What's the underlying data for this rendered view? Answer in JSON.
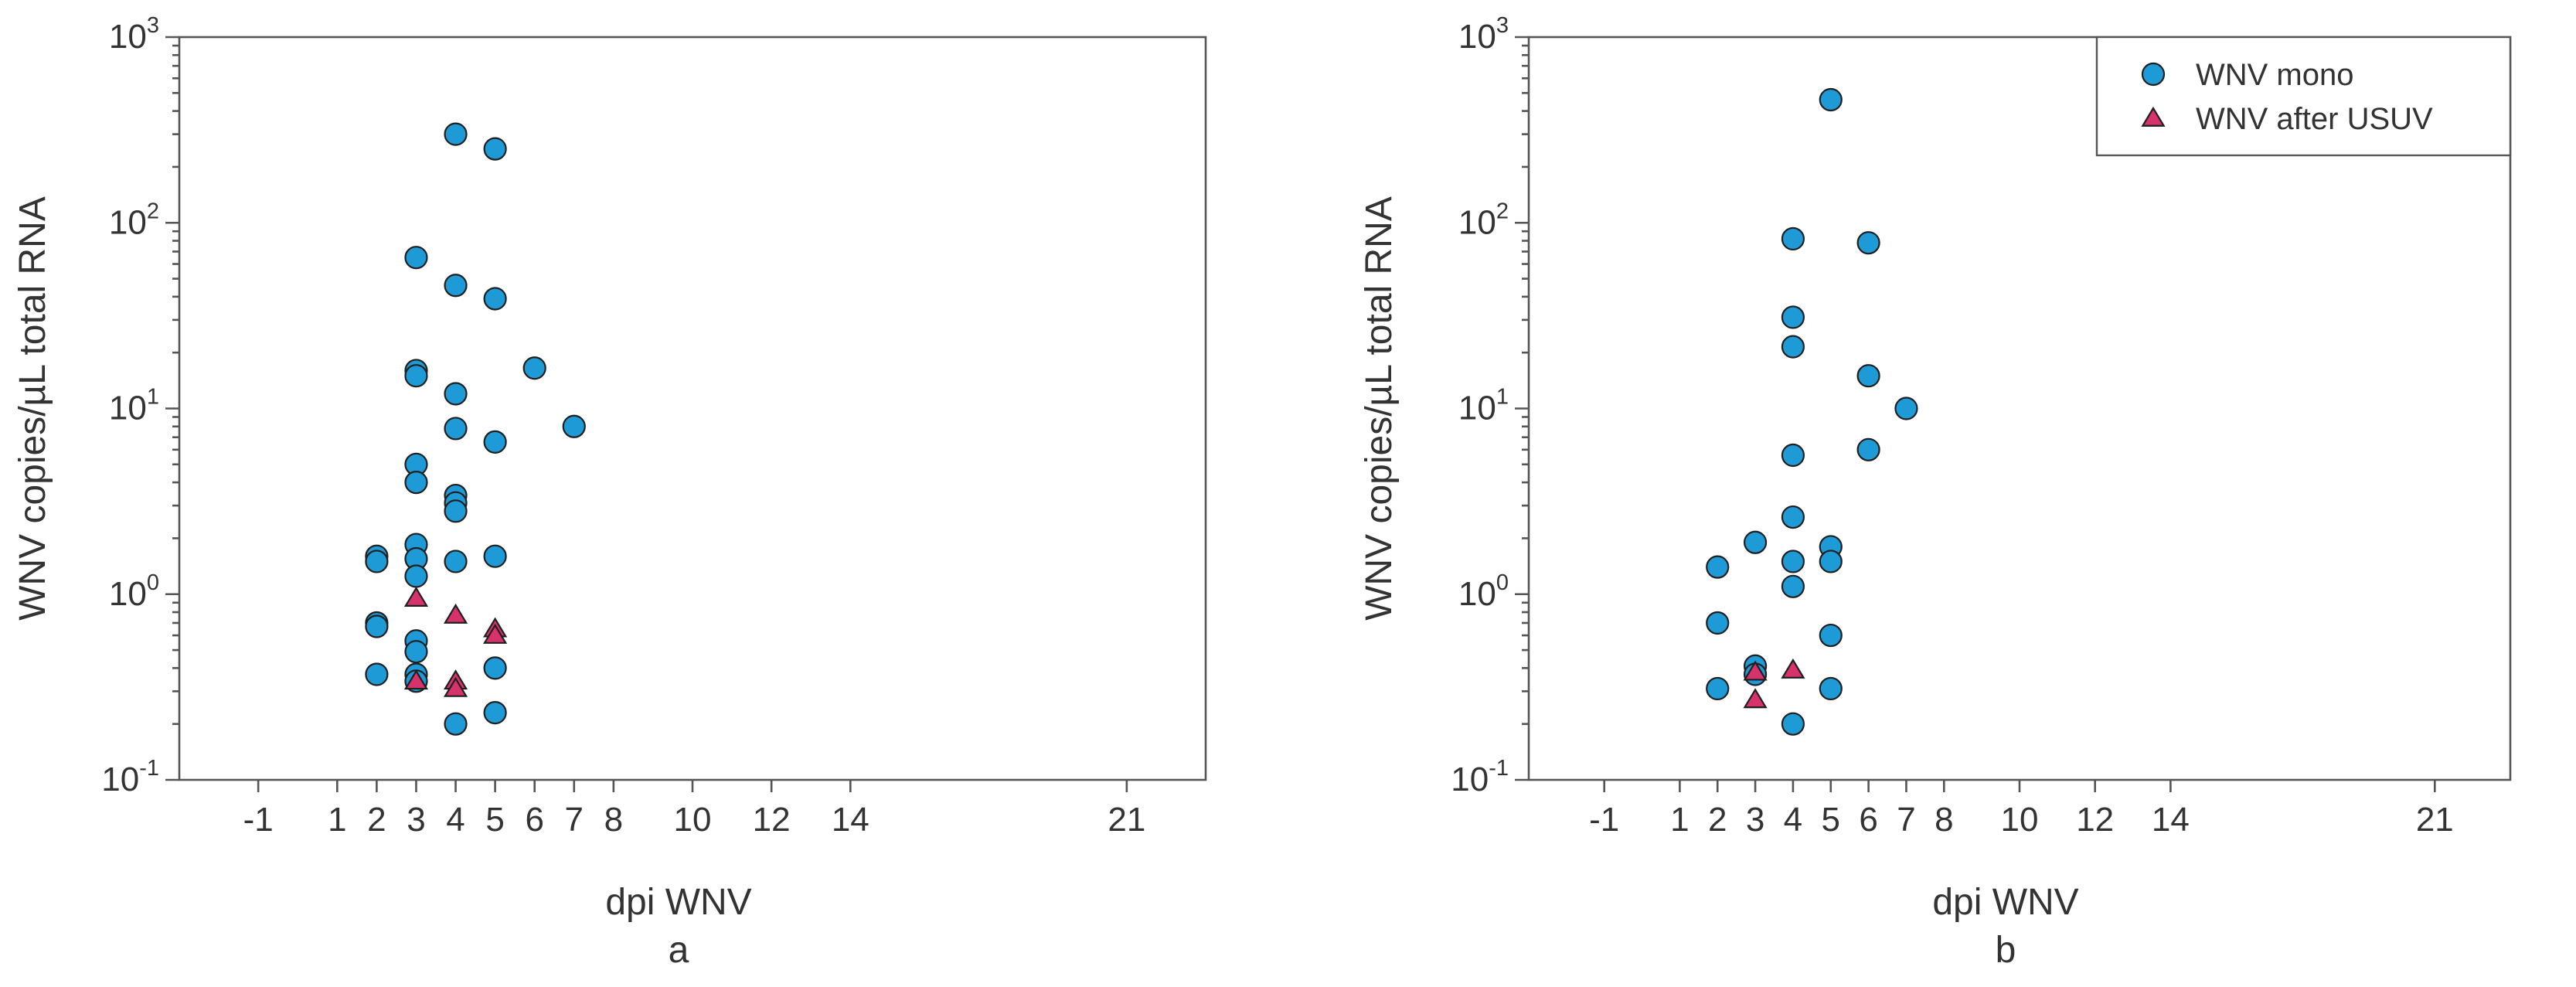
{
  "chart_data": [
    {
      "type": "scatter",
      "panel_label": "a",
      "xlabel": "dpi WNV",
      "ylabel": "WNV copies/µL total RNA",
      "xlim": [
        -3,
        23
      ],
      "ylim": [
        0.1,
        1000
      ],
      "y_scale": "log",
      "x_ticks": [
        -1,
        1,
        2,
        3,
        4,
        5,
        6,
        7,
        8,
        10,
        12,
        14,
        21
      ],
      "y_ticks": [
        {
          "value": 0.1,
          "base": "10",
          "exp": "-1"
        },
        {
          "value": 1,
          "base": "10",
          "exp": "0"
        },
        {
          "value": 10,
          "base": "10",
          "exp": "1"
        },
        {
          "value": 100,
          "base": "10",
          "exp": "2"
        },
        {
          "value": 1000,
          "base": "10",
          "exp": "3"
        }
      ],
      "legend": null,
      "series": [
        {
          "name": "WNV mono",
          "marker": "circle",
          "color": "#1e9bd7",
          "points": [
            [
              2,
              1.6
            ],
            [
              2,
              1.5
            ],
            [
              2,
              0.7
            ],
            [
              2,
              0.67
            ],
            [
              2,
              0.37
            ],
            [
              3,
              65
            ],
            [
              3,
              16
            ],
            [
              3,
              15
            ],
            [
              3,
              5
            ],
            [
              3,
              4
            ],
            [
              3,
              1.85
            ],
            [
              3,
              1.55
            ],
            [
              3,
              1.25
            ],
            [
              3,
              0.56
            ],
            [
              3,
              0.49
            ],
            [
              3,
              0.37
            ],
            [
              3,
              0.34
            ],
            [
              4,
              300
            ],
            [
              4,
              46
            ],
            [
              4,
              12
            ],
            [
              4,
              7.8
            ],
            [
              4,
              3.4
            ],
            [
              4,
              3.1
            ],
            [
              4,
              2.8
            ],
            [
              4,
              1.5
            ],
            [
              4,
              0.2
            ],
            [
              5,
              250
            ],
            [
              5,
              39
            ],
            [
              5,
              6.6
            ],
            [
              5,
              1.6
            ],
            [
              5,
              0.4
            ],
            [
              5,
              0.23
            ],
            [
              6,
              16.5
            ],
            [
              7,
              8
            ]
          ]
        },
        {
          "name": "WNV after USUV",
          "marker": "triangle",
          "color": "#d6336c",
          "points": [
            [
              3,
              0.95
            ],
            [
              3,
              0.34
            ],
            [
              4,
              0.77
            ],
            [
              4,
              0.34
            ],
            [
              4,
              0.31
            ],
            [
              5,
              0.65
            ],
            [
              5,
              0.6
            ]
          ]
        }
      ]
    },
    {
      "type": "scatter",
      "panel_label": "b",
      "xlabel": "dpi WNV",
      "ylabel": "WNV copies/µL total RNA",
      "xlim": [
        -3,
        23
      ],
      "ylim": [
        0.1,
        1000
      ],
      "y_scale": "log",
      "x_ticks": [
        -1,
        1,
        2,
        3,
        4,
        5,
        6,
        7,
        8,
        10,
        12,
        14,
        21
      ],
      "y_ticks": [
        {
          "value": 0.1,
          "base": "10",
          "exp": "-1"
        },
        {
          "value": 1,
          "base": "10",
          "exp": "0"
        },
        {
          "value": 10,
          "base": "10",
          "exp": "1"
        },
        {
          "value": 100,
          "base": "10",
          "exp": "2"
        },
        {
          "value": 1000,
          "base": "10",
          "exp": "3"
        }
      ],
      "legend": {
        "position": "top-right",
        "entries": [
          {
            "label": "WNV mono",
            "marker": "circle",
            "color": "#1e9bd7"
          },
          {
            "label": "WNV after USUV",
            "marker": "triangle",
            "color": "#d6336c"
          }
        ]
      },
      "series": [
        {
          "name": "WNV mono",
          "marker": "circle",
          "color": "#1e9bd7",
          "points": [
            [
              2,
              1.4
            ],
            [
              2,
              0.7
            ],
            [
              2,
              0.31
            ],
            [
              3,
              1.9
            ],
            [
              3,
              0.41
            ],
            [
              3,
              0.37
            ],
            [
              4,
              82
            ],
            [
              4,
              31
            ],
            [
              4,
              21.5
            ],
            [
              4,
              5.6
            ],
            [
              4,
              2.6
            ],
            [
              4,
              1.5
            ],
            [
              4,
              1.1
            ],
            [
              4,
              0.2
            ],
            [
              5,
              460
            ],
            [
              5,
              1.8
            ],
            [
              5,
              1.5
            ],
            [
              5,
              0.6
            ],
            [
              5,
              0.31
            ],
            [
              6,
              78
            ],
            [
              6,
              15
            ],
            [
              6,
              6
            ],
            [
              7,
              10
            ]
          ]
        },
        {
          "name": "WNV after USUV",
          "marker": "triangle",
          "color": "#d6336c",
          "points": [
            [
              3,
              0.38
            ],
            [
              3,
              0.27
            ],
            [
              4,
              0.39
            ]
          ]
        }
      ]
    }
  ]
}
